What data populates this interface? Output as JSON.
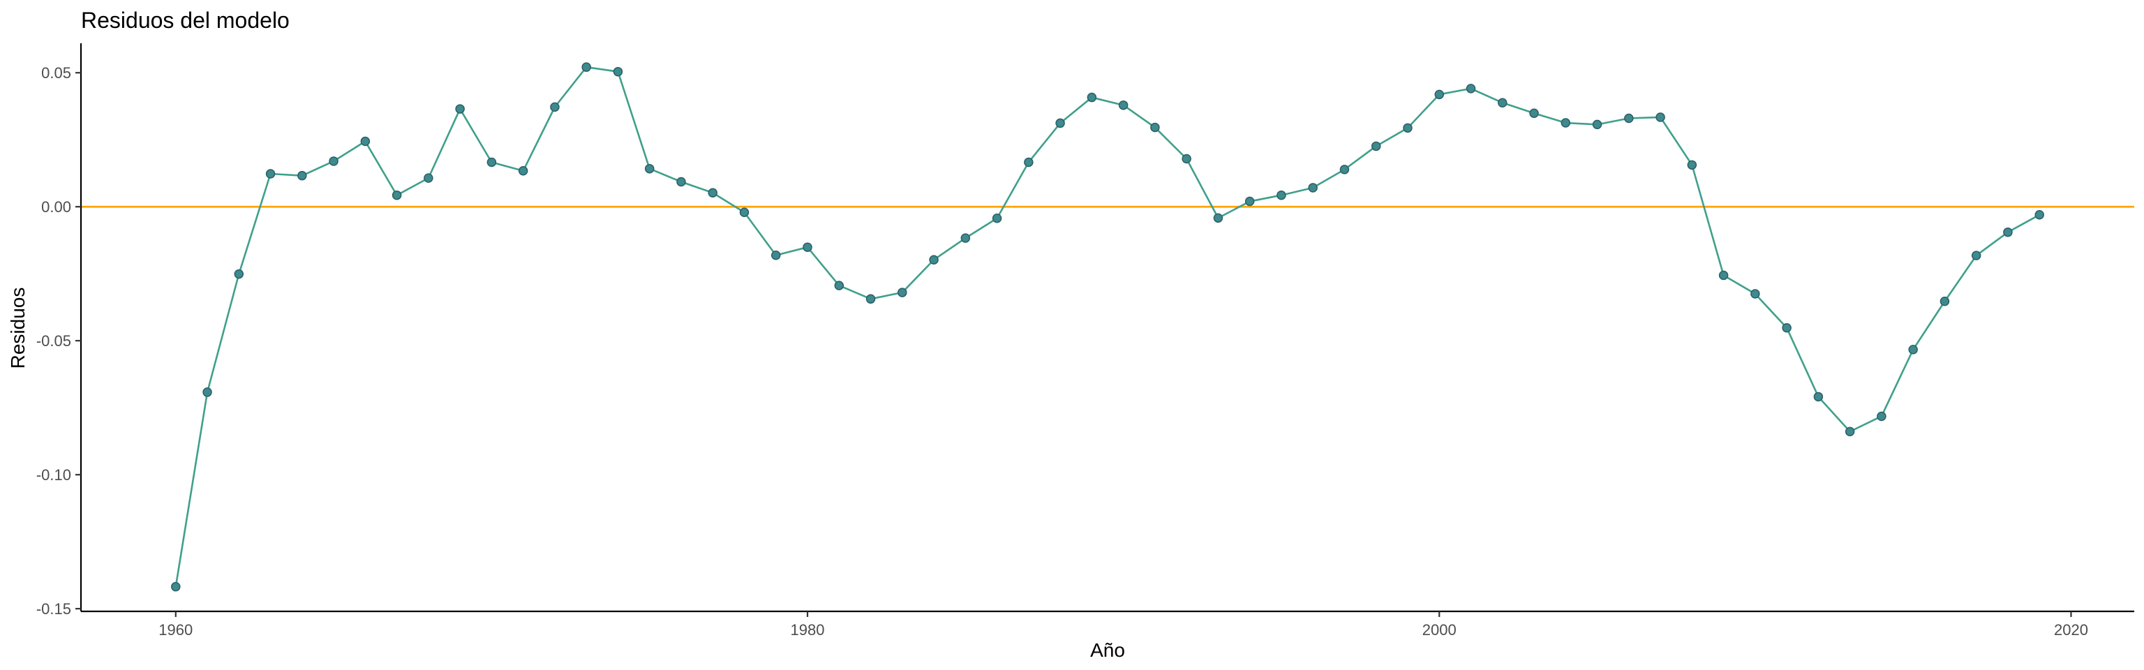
{
  "chart_data": {
    "type": "line",
    "title": "Residuos del modelo",
    "xlabel": "Año",
    "ylabel": "Residuos",
    "xlim": [
      1957,
      2022
    ],
    "ylim": [
      -0.151,
      0.061
    ],
    "xticks": [
      1960,
      1980,
      2000,
      2020
    ],
    "xtick_labels": [
      "1960",
      "1980",
      "2000",
      "2020"
    ],
    "yticks": [
      0.05,
      0.0,
      -0.05,
      -0.1,
      -0.15
    ],
    "ytick_labels": [
      "0.05",
      "0.00",
      "-0.05",
      "-0.10",
      "-0.15"
    ],
    "grid": false,
    "reference_line": {
      "y": 0.0,
      "color": "#FFA500"
    },
    "colors": {
      "line": "#3FA08A",
      "point": "#3E8A8E",
      "point_edge": "#2C5F66"
    },
    "series": [
      {
        "x": [
          1960,
          1961,
          1962,
          1963,
          1964,
          1965,
          1966,
          1967,
          1968,
          1969,
          1970,
          1971,
          1972,
          1973,
          1974,
          1975,
          1976,
          1977,
          1978,
          1979,
          1980,
          1981,
          1982,
          1983,
          1984,
          1985,
          1986,
          1987,
          1988,
          1989,
          1990,
          1991,
          1992,
          1993,
          1994,
          1995,
          1996,
          1997,
          1998,
          1999,
          2000,
          2001,
          2002,
          2003,
          2004,
          2005,
          2006,
          2007,
          2008,
          2009,
          2010,
          2011,
          2012,
          2013,
          2014,
          2015,
          2016,
          2017,
          2018,
          2019
        ],
        "y": [
          -0.1418,
          -0.0692,
          -0.0251,
          0.0123,
          0.0116,
          0.017,
          0.0244,
          0.0043,
          0.0107,
          0.0365,
          0.0166,
          0.0134,
          0.0372,
          0.0521,
          0.0504,
          0.0142,
          0.0093,
          0.0052,
          -0.0021,
          -0.0181,
          -0.0151,
          -0.0294,
          -0.0344,
          -0.032,
          -0.0198,
          -0.0117,
          -0.0043,
          0.0166,
          0.0312,
          0.0408,
          0.0379,
          0.0296,
          0.0179,
          -0.0042,
          0.002,
          0.0043,
          0.0071,
          0.0139,
          0.0226,
          0.0294,
          0.0419,
          0.0441,
          0.0388,
          0.0349,
          0.0313,
          0.0307,
          0.033,
          0.0334,
          0.0156,
          -0.0256,
          -0.0325,
          -0.0452,
          -0.0709,
          -0.0839,
          -0.0782,
          -0.0533,
          -0.0353,
          -0.0182,
          -0.0095,
          -0.003
        ]
      }
    ]
  }
}
